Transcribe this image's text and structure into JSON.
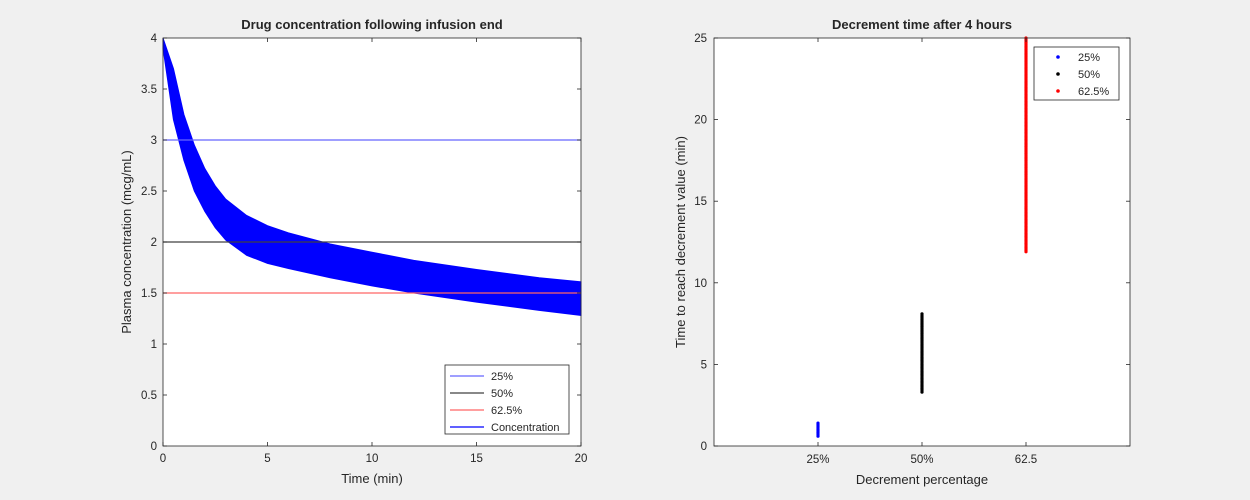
{
  "chart_data": [
    {
      "type": "line",
      "title": "Drug concentration following infusion end",
      "xlabel": "Time (min)",
      "ylabel": "Plasma concentration (mcg/mL)",
      "xlim": [
        0,
        20
      ],
      "ylim": [
        0,
        4
      ],
      "xticks": [
        0,
        5,
        10,
        15,
        20
      ],
      "yticks": [
        0,
        0.5,
        1,
        1.5,
        2,
        2.5,
        3,
        3.5,
        4
      ],
      "grid": false,
      "legend_position": "bottom-right",
      "series": [
        {
          "name": "25%",
          "kind": "horizontal-line",
          "y": 3,
          "color": "#6666ff"
        },
        {
          "name": "50%",
          "kind": "horizontal-line",
          "y": 2,
          "color": "#404040"
        },
        {
          "name": "62.5%",
          "kind": "horizontal-line",
          "y": 1.5,
          "color": "#ff6666"
        },
        {
          "name": "Concentration",
          "kind": "band",
          "color": "#0000ff",
          "x": [
            0,
            0.5,
            1,
            1.5,
            2,
            2.5,
            3,
            4,
            5,
            6,
            8,
            10,
            12,
            15,
            18,
            20
          ],
          "upper": [
            4.3,
            3.7,
            3.25,
            2.95,
            2.72,
            2.55,
            2.42,
            2.26,
            2.16,
            2.09,
            1.98,
            1.9,
            1.82,
            1.73,
            1.65,
            1.61
          ],
          "lower": [
            3.9,
            3.2,
            2.8,
            2.5,
            2.3,
            2.14,
            2.02,
            1.87,
            1.79,
            1.74,
            1.65,
            1.57,
            1.5,
            1.41,
            1.33,
            1.28
          ]
        }
      ]
    },
    {
      "type": "scatter",
      "title": "Decrement time after 4 hours",
      "xlabel": "Decrement percentage",
      "ylabel": "Time to reach decrement value (min)",
      "categories": [
        "25%",
        "50%",
        "62.5"
      ],
      "xlim": [
        0,
        4
      ],
      "ylim": [
        0,
        25
      ],
      "yticks": [
        0,
        5,
        10,
        15,
        20,
        25
      ],
      "grid": false,
      "legend_position": "top-right",
      "series": [
        {
          "name": "25%",
          "x": 1,
          "ymin": 0.6,
          "ymax": 1.4,
          "color": "#0000ff"
        },
        {
          "name": "50%",
          "x": 2,
          "ymin": 3.3,
          "ymax": 8.1,
          "color": "#000000"
        },
        {
          "name": "62.5%",
          "x": 3,
          "ymin": 11.9,
          "ymax": 25,
          "color": "#ff0000"
        }
      ]
    }
  ]
}
